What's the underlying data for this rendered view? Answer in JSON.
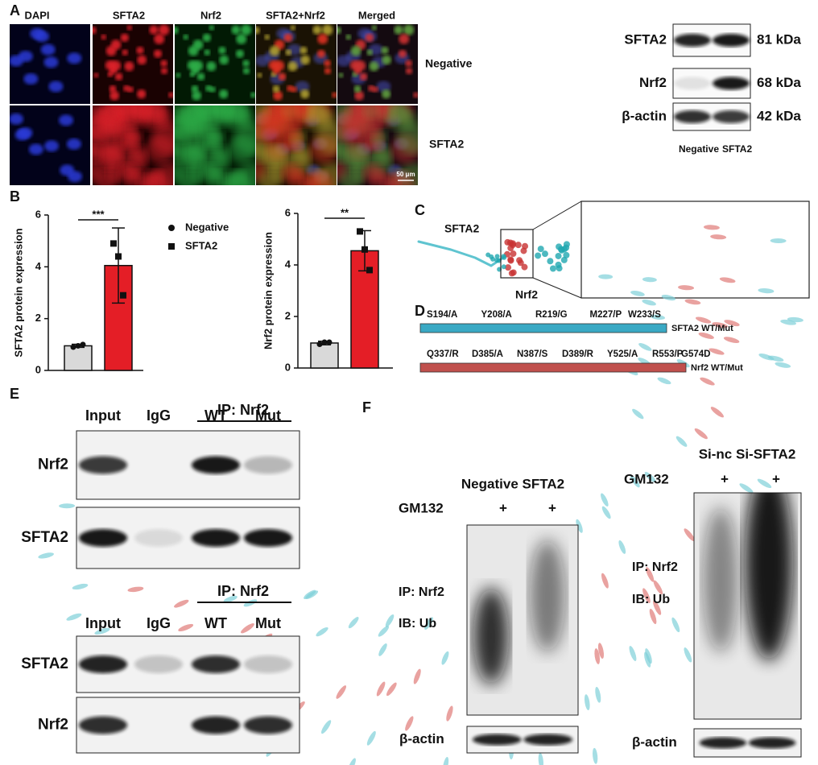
{
  "panel_a": {
    "label": "A",
    "channels": [
      "DAPI",
      "SFTA2",
      "Nrf2",
      "SFTA2+Nrf2",
      "Merged"
    ],
    "conditions": [
      "Negative",
      "SFTA2"
    ],
    "scale_bar": "50 μm",
    "blot": {
      "proteins": [
        {
          "name": "SFTA2",
          "size": "81 kDa"
        },
        {
          "name": "Nrf2",
          "size": "68 kDa"
        },
        {
          "name": "β-actin",
          "size": "42 kDa"
        }
      ],
      "lanes": [
        "Negative",
        "SFTA2"
      ]
    }
  },
  "panel_b": {
    "label": "B"
  },
  "chart_data": [
    {
      "type": "bar",
      "y_label": "SFTA2 protein expression",
      "ylim": [
        0,
        6
      ],
      "yticks": [
        0,
        2,
        4,
        6
      ],
      "significance": "***",
      "series": [
        {
          "name": "Negative",
          "color": "#d9d9d9",
          "marker": "circle",
          "values": [
            0.95
          ],
          "errors": [
            0.06
          ],
          "points": [
            0.9,
            0.95,
            1.0
          ]
        },
        {
          "name": "SFTA2",
          "color": "#e41e26",
          "marker": "square",
          "values": [
            4.05
          ],
          "errors": [
            1.45
          ],
          "points": [
            4.9,
            4.4,
            2.9
          ]
        }
      ]
    },
    {
      "type": "bar",
      "y_label": "Nrf2 protein expression",
      "ylim": [
        0,
        6
      ],
      "yticks": [
        0,
        2,
        4,
        6
      ],
      "significance": "**",
      "series": [
        {
          "color": "#d9d9d9",
          "marker": "circle",
          "values": [
            0.97
          ],
          "errors": [
            0.07
          ],
          "points": [
            0.92,
            1.0,
            1.0
          ]
        },
        {
          "color": "#e41e26",
          "marker": "square",
          "values": [
            4.55
          ],
          "errors": [
            0.78
          ],
          "points": [
            5.3,
            4.6,
            3.8
          ]
        }
      ]
    }
  ],
  "panel_c": {
    "label": "C",
    "proteins": [
      "SFTA2",
      "Nrf2"
    ]
  },
  "panel_d": {
    "label": "D",
    "constructs": [
      {
        "mutations": [
          "S194/A",
          "Y208/A",
          "R219/G",
          "M227/P",
          "W233/S"
        ],
        "name": "SFTA2 WT/Mut",
        "color": "#3aa9c4"
      },
      {
        "mutations": [
          "Q337/R",
          "D385/A",
          "N387/S",
          "D389/R",
          "Y525/A",
          "R553/P",
          "G574D"
        ],
        "name": "Nrf2 WT/Mut",
        "color": "#c0504d"
      }
    ]
  },
  "panel_e": {
    "label": "E",
    "blots": [
      {
        "header": "IP: Nrf2",
        "lanes": [
          "Input",
          "IgG",
          "WT",
          "Mut"
        ],
        "rows": [
          "Nrf2",
          "SFTA2"
        ]
      },
      {
        "header": "IP: Nrf2",
        "lanes": [
          "Input",
          "IgG",
          "WT",
          "Mut"
        ],
        "rows": [
          "SFTA2",
          "Nrf2"
        ]
      }
    ]
  },
  "panel_f": {
    "label": "F",
    "blots": [
      {
        "groups": "Negative SFTA2",
        "treatment": "GM132",
        "marks": [
          "+",
          "+"
        ],
        "ip": "IP: Nrf2",
        "ib": "IB: Ub",
        "loading": "β-actin"
      },
      {
        "groups": "Si-nc Si-SFTA2",
        "treatment": "GM132",
        "marks": [
          "+",
          "+"
        ],
        "ip": "IP: Nrf2",
        "ib": "IB: Ub",
        "loading": "β-actin"
      }
    ]
  }
}
